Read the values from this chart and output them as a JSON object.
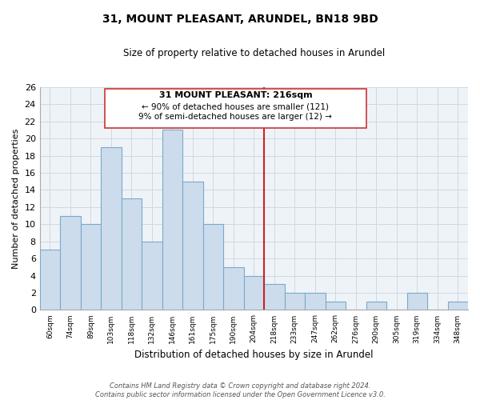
{
  "title": "31, MOUNT PLEASANT, ARUNDEL, BN18 9BD",
  "subtitle": "Size of property relative to detached houses in Arundel",
  "xlabel": "Distribution of detached houses by size in Arundel",
  "ylabel": "Number of detached properties",
  "bin_labels": [
    "60sqm",
    "74sqm",
    "89sqm",
    "103sqm",
    "118sqm",
    "132sqm",
    "146sqm",
    "161sqm",
    "175sqm",
    "190sqm",
    "204sqm",
    "218sqm",
    "233sqm",
    "247sqm",
    "262sqm",
    "276sqm",
    "290sqm",
    "305sqm",
    "319sqm",
    "334sqm",
    "348sqm"
  ],
  "bar_heights": [
    7,
    11,
    10,
    19,
    13,
    8,
    21,
    15,
    10,
    5,
    4,
    3,
    2,
    2,
    1,
    0,
    1,
    0,
    2,
    0,
    1
  ],
  "bar_color": "#ccdcec",
  "bar_edge_color": "#7aaac8",
  "red_line_x": 11,
  "annotation_title": "31 MOUNT PLEASANT: 216sqm",
  "annotation_line1": "← 90% of detached houses are smaller (121)",
  "annotation_line2": "9% of semi-detached houses are larger (12) →",
  "ylim": [
    0,
    26
  ],
  "yticks": [
    0,
    2,
    4,
    6,
    8,
    10,
    12,
    14,
    16,
    18,
    20,
    22,
    24,
    26
  ],
  "footer_line1": "Contains HM Land Registry data © Crown copyright and database right 2024.",
  "footer_line2": "Contains public sector information licensed under the Open Government Licence v3.0.",
  "grid_color": "#d0d8e0",
  "box_face_color": "#ffffff",
  "box_edge_color": "#cc3333"
}
